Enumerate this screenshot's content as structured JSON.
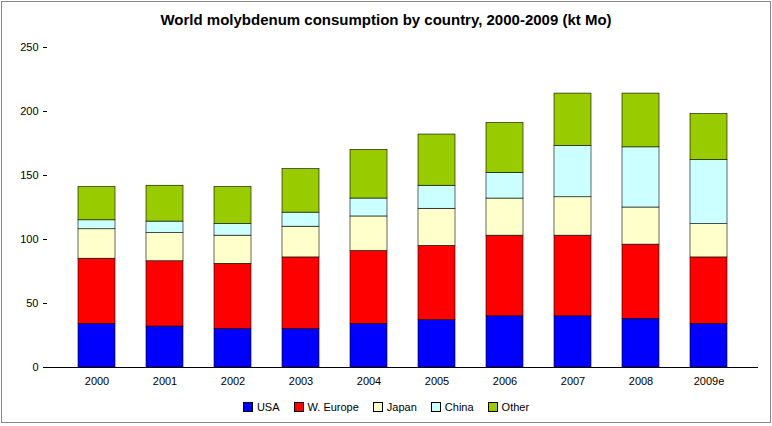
{
  "chart_data": {
    "type": "bar",
    "stacked": true,
    "title": "World molybdenum consumption by country, 2000-2009 (kt Mo)",
    "categories": [
      "2000",
      "2001",
      "2002",
      "2003",
      "2004",
      "2005",
      "2006",
      "2007",
      "2008",
      "2009e"
    ],
    "series": [
      {
        "name": "USA",
        "color": "#0000ff",
        "values": [
          34,
          32,
          30,
          30,
          34,
          37,
          40,
          40,
          38,
          34
        ]
      },
      {
        "name": "W. Europe",
        "color": "#ff0000",
        "values": [
          51,
          51,
          51,
          56,
          57,
          58,
          63,
          63,
          58,
          52
        ]
      },
      {
        "name": "Japan",
        "color": "#ffffcc",
        "values": [
          23,
          22,
          22,
          24,
          27,
          29,
          29,
          30,
          29,
          26
        ]
      },
      {
        "name": "China",
        "color": "#ccffff",
        "values": [
          7,
          9,
          9,
          11,
          14,
          18,
          20,
          40,
          47,
          50
        ]
      },
      {
        "name": "Other",
        "color": "#99cc00",
        "values": [
          26,
          28,
          29,
          34,
          38,
          40,
          39,
          41,
          42,
          36
        ]
      }
    ],
    "ylim": [
      0,
      250
    ],
    "yticks": [
      0,
      50,
      100,
      150,
      200,
      250
    ],
    "grid": false,
    "legend": "bottom"
  }
}
